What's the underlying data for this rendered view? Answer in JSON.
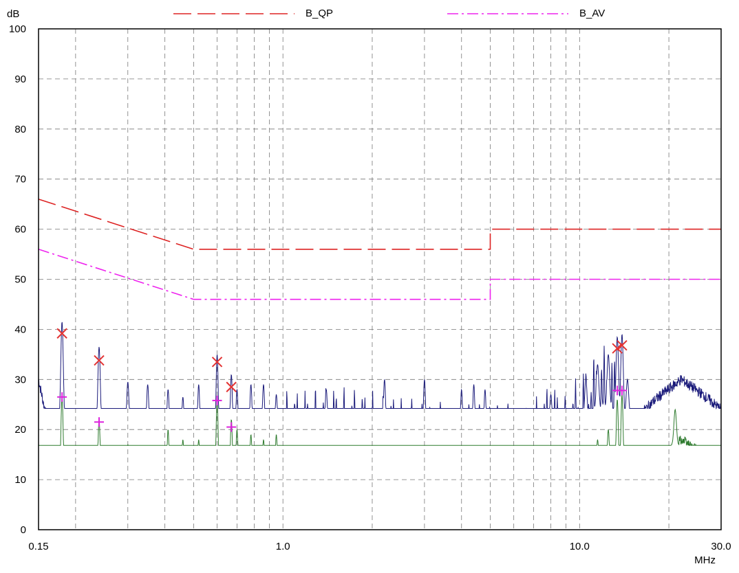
{
  "chart_data": {
    "type": "line",
    "title": "",
    "ylabel": "dB",
    "xlabel": "MHz",
    "xscale": "log",
    "xlim": [
      0.15,
      30.0
    ],
    "ylim": [
      0,
      100
    ],
    "grid": true,
    "legend_placement": "top",
    "x_tick_labels": [
      {
        "value": 0.15,
        "label": "0.15"
      },
      {
        "value": 1.0,
        "label": "1.0"
      },
      {
        "value": 10.0,
        "label": "10.0"
      },
      {
        "value": 30.0,
        "label": "30.0"
      }
    ],
    "y_tick_labels": [
      "0",
      "10",
      "20",
      "30",
      "40",
      "50",
      "60",
      "70",
      "80",
      "90",
      "100"
    ],
    "y_tick_values": [
      0,
      10,
      20,
      30,
      40,
      50,
      60,
      70,
      80,
      90,
      100
    ],
    "limit_series": [
      {
        "name": "B_QP",
        "color": "#dd2222",
        "dash": "long",
        "points": [
          [
            0.15,
            66
          ],
          [
            0.5,
            56
          ],
          [
            5.0,
            56
          ],
          [
            5.0,
            60
          ],
          [
            30.0,
            60
          ]
        ]
      },
      {
        "name": "B_AV",
        "color": "#ee22ee",
        "dash": "dashdot",
        "points": [
          [
            0.15,
            56
          ],
          [
            0.5,
            46
          ],
          [
            5.0,
            46
          ],
          [
            5.0,
            50
          ],
          [
            30.0,
            50
          ]
        ]
      }
    ],
    "trace_series": [
      {
        "color": "#1a1a7a",
        "base_points": [
          [
            0.15,
            30
          ],
          [
            0.16,
            22
          ],
          [
            0.19,
            20
          ],
          [
            0.3,
            18
          ],
          [
            0.4,
            15
          ],
          [
            0.6,
            13
          ],
          [
            0.8,
            15
          ],
          [
            1.0,
            16
          ],
          [
            1.5,
            17
          ],
          [
            2.0,
            16
          ],
          [
            3.0,
            14
          ],
          [
            4.0,
            13
          ],
          [
            5.0,
            14
          ],
          [
            6.0,
            13
          ],
          [
            7.0,
            14
          ],
          [
            8.0,
            18
          ],
          [
            9.0,
            15
          ],
          [
            10.0,
            20
          ],
          [
            12.0,
            25
          ],
          [
            14.0,
            22
          ],
          [
            16.0,
            23
          ],
          [
            18.0,
            26
          ],
          [
            22.0,
            30
          ],
          [
            26.0,
            27
          ],
          [
            30.0,
            24
          ]
        ],
        "peaks": [
          [
            0.18,
            41.5
          ],
          [
            0.24,
            36.5
          ],
          [
            0.3,
            29.5
          ],
          [
            0.35,
            29
          ],
          [
            0.41,
            28
          ],
          [
            0.46,
            26.5
          ],
          [
            0.52,
            29
          ],
          [
            0.6,
            35
          ],
          [
            0.67,
            31
          ],
          [
            0.7,
            28
          ],
          [
            0.78,
            29
          ],
          [
            0.86,
            29
          ],
          [
            0.95,
            27
          ],
          [
            1.4,
            28
          ],
          [
            2.2,
            30
          ],
          [
            3.0,
            30
          ],
          [
            4.0,
            28
          ],
          [
            4.4,
            29
          ],
          [
            4.8,
            28
          ],
          [
            8.0,
            27
          ],
          [
            10.5,
            30
          ],
          [
            11.5,
            33
          ],
          [
            12.5,
            35
          ],
          [
            13.4,
            38.5
          ],
          [
            13.9,
            39
          ],
          [
            14.5,
            30
          ]
        ],
        "spikes": {
          "from": 1.0,
          "to": 13.8,
          "count": 130,
          "height": 12,
          "seed": 7
        }
      },
      {
        "color": "#2d7a2d",
        "base_points": [
          [
            0.15,
            8
          ],
          [
            0.2,
            6
          ],
          [
            0.3,
            4
          ],
          [
            0.4,
            3
          ],
          [
            0.6,
            4
          ],
          [
            0.8,
            5
          ],
          [
            1.0,
            4
          ],
          [
            1.5,
            3
          ],
          [
            2.0,
            3
          ],
          [
            3.0,
            3
          ],
          [
            4.0,
            3
          ],
          [
            5.0,
            3
          ],
          [
            6.0,
            3
          ],
          [
            7.0,
            4
          ],
          [
            8.0,
            5
          ],
          [
            9.0,
            4
          ],
          [
            10.0,
            5
          ],
          [
            12.0,
            8
          ],
          [
            14.0,
            7
          ],
          [
            16.0,
            10
          ],
          [
            18.0,
            13
          ],
          [
            22.0,
            18
          ],
          [
            26.0,
            15
          ],
          [
            30.0,
            10
          ]
        ],
        "peaks": [
          [
            0.18,
            26.5
          ],
          [
            0.24,
            22
          ],
          [
            0.3,
            17
          ],
          [
            0.35,
            16
          ],
          [
            0.41,
            20
          ],
          [
            0.46,
            18
          ],
          [
            0.52,
            18
          ],
          [
            0.6,
            26
          ],
          [
            0.67,
            22
          ],
          [
            0.7,
            20
          ],
          [
            0.78,
            19
          ],
          [
            0.86,
            18
          ],
          [
            0.95,
            19
          ],
          [
            3.8,
            10
          ],
          [
            4.1,
            11
          ],
          [
            4.4,
            12
          ],
          [
            10.5,
            15
          ],
          [
            11.5,
            18
          ],
          [
            12.5,
            20
          ],
          [
            13.4,
            26
          ],
          [
            13.9,
            27
          ],
          [
            21.0,
            24
          ]
        ],
        "spikes": {
          "from": 1.0,
          "to": 13.8,
          "count": 130,
          "height": 8,
          "seed": 11
        }
      }
    ],
    "qp_markers": [
      [
        0.18,
        39.2
      ],
      [
        0.24,
        33.8
      ],
      [
        0.6,
        33.5
      ],
      [
        0.67,
        28.5
      ],
      [
        13.4,
        36.2
      ],
      [
        13.9,
        36.8
      ]
    ],
    "av_markers": [
      [
        0.18,
        26.5
      ],
      [
        0.24,
        21.5
      ],
      [
        0.6,
        25.8
      ],
      [
        0.67,
        20.5
      ],
      [
        13.4,
        27.8
      ],
      [
        13.9,
        27.8
      ]
    ],
    "colors": {
      "qp_marker": "#e33333",
      "av_marker": "#dd22dd",
      "grid": "#777777"
    }
  }
}
